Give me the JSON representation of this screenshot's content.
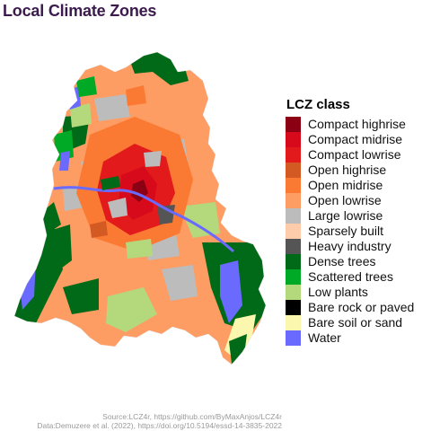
{
  "title": "Local Climate Zones",
  "legend": {
    "title": "LCZ class",
    "items": [
      {
        "label": "Compact highrise",
        "color": "#8b0013"
      },
      {
        "label": "Compact midrise",
        "color": "#d70a1c"
      },
      {
        "label": "Compact lowrise",
        "color": "#e21a1c"
      },
      {
        "label": "Open highrise",
        "color": "#d35a22"
      },
      {
        "label": "Open midrise",
        "color": "#fb7a33"
      },
      {
        "label": "Open lowrise",
        "color": "#fd9d63"
      },
      {
        "label": "Large lowrise",
        "color": "#bcbcbc"
      },
      {
        "label": "Sparsely built",
        "color": "#fecbab"
      },
      {
        "label": "Heavy industry",
        "color": "#555555"
      },
      {
        "label": "Dense trees",
        "color": "#006a18"
      },
      {
        "label": "Scattered trees",
        "color": "#00a926"
      },
      {
        "label": "Low plants",
        "color": "#b4d97d"
      },
      {
        "label": "Bare rock or paved",
        "color": "#000000"
      },
      {
        "label": "Bare soil or sand",
        "color": "#fbf7ae"
      },
      {
        "label": "Water",
        "color": "#6a6aff"
      }
    ]
  },
  "caption": {
    "source": "Source:LCZ4r, https://github.com/ByMaxAnjos/LCZ4r",
    "data": "Data:Demuzere et al. (2022), https://doi.org/10.5194/essd-14-3835-2022"
  }
}
